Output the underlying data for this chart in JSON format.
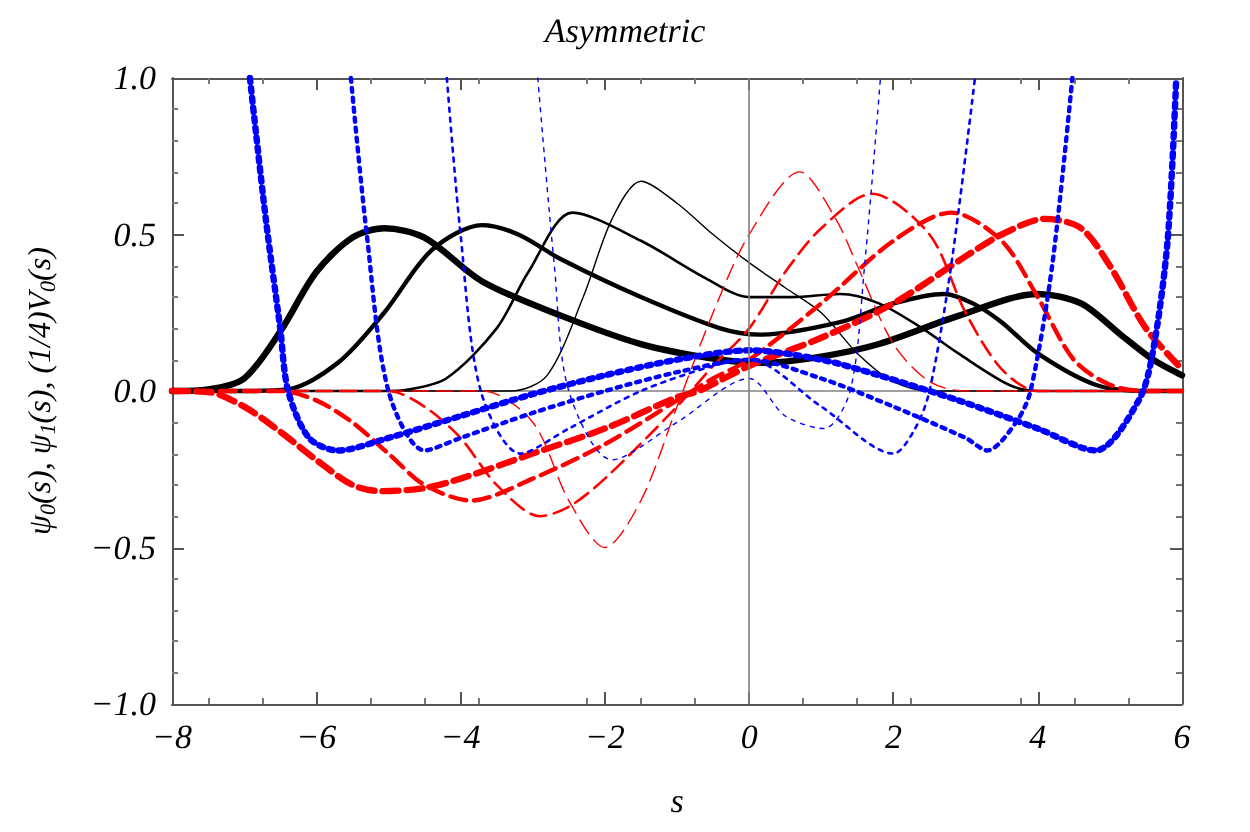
{
  "chart_data": {
    "type": "line",
    "title": "Asymmetric",
    "xlabel": "s",
    "ylabel": "ψ$_{0}$(s), ψ$_{1}$(s), (1/4)V$_{0}$(s)",
    "xlim": [
      -8,
      6
    ],
    "ylim": [
      -1,
      1
    ],
    "xticks": [
      {
        "value": -8,
        "label": "−8"
      },
      {
        "value": -6,
        "label": "−6"
      },
      {
        "value": -4,
        "label": "−4"
      },
      {
        "value": -2,
        "label": "−2"
      },
      {
        "value": 0,
        "label": "0"
      },
      {
        "value": 2,
        "label": "2"
      },
      {
        "value": 4,
        "label": "4"
      },
      {
        "value": 6,
        "label": "6"
      }
    ],
    "yticks": [
      {
        "value": -1,
        "label": "−1.0"
      },
      {
        "value": -0.5,
        "label": "−0.5"
      },
      {
        "value": 0,
        "label": "0.0"
      },
      {
        "value": 0.5,
        "label": "0.5"
      },
      {
        "value": 1,
        "label": "1.0"
      }
    ],
    "marker": "none",
    "ref_lines": [
      {
        "axis": "x",
        "value": 0,
        "color": "#808080"
      }
    ],
    "series": [
      {
        "color": "#000000",
        "line_style": "solid",
        "x": [
          -8,
          -7.5,
          -7,
          -6.5,
          -6,
          -5.5,
          -5.06,
          -4.5,
          -3.7,
          -2.6,
          -1.5,
          -0.4,
          0.2,
          1,
          1.8,
          2.9,
          4,
          4.6,
          5.15,
          5.6,
          6
        ],
        "values": [
          0,
          0.005,
          0.04,
          0.19,
          0.38,
          0.49,
          0.52,
          0.49,
          0.35,
          0.24,
          0.15,
          0.1,
          0.09,
          0.11,
          0.15,
          0.24,
          0.31,
          0.28,
          0.18,
          0.1,
          0.05
        ]
      },
      {
        "color": "#000000",
        "line_style": "solid",
        "x": [
          -8,
          -7,
          -6.4,
          -5.7,
          -5.06,
          -4.4,
          -3.7,
          -3.2,
          -2.6,
          -1.5,
          -0.4,
          0.15,
          1.26,
          2,
          2.7,
          3.1,
          3.5,
          4,
          4.8,
          5.5,
          6
        ],
        "values": [
          0,
          0,
          0.005,
          0.09,
          0.25,
          0.45,
          0.53,
          0.5,
          0.42,
          0.3,
          0.2,
          0.18,
          0.22,
          0.28,
          0.31,
          0.28,
          0.22,
          0.12,
          0.02,
          0,
          0
        ]
      },
      {
        "color": "#000000",
        "line_style": "solid",
        "x": [
          -8,
          -5,
          -4.8,
          -4.2,
          -3.5,
          -3.06,
          -2.45,
          -1.5,
          -0.6,
          0,
          0.6,
          1.26,
          1.8,
          2.4,
          2.9,
          3.6,
          4,
          6
        ],
        "values": [
          0,
          0,
          0.002,
          0.04,
          0.2,
          0.38,
          0.57,
          0.48,
          0.36,
          0.3,
          0.3,
          0.31,
          0.28,
          0.2,
          0.12,
          0.02,
          0,
          0
        ]
      },
      {
        "color": "#000000",
        "line_style": "solid",
        "x": [
          -8,
          -3.3,
          -2.8,
          -2.3,
          -1.9,
          -1.5,
          -1,
          -0.5,
          0,
          0.5,
          1,
          1.5,
          2,
          2.5,
          6
        ],
        "values": [
          0,
          0,
          0.05,
          0.3,
          0.55,
          0.67,
          0.6,
          0.5,
          0.41,
          0.33,
          0.25,
          0.12,
          0.03,
          0,
          0
        ]
      },
      {
        "color": "#ff0000",
        "line_style": "dashed",
        "x": [
          -8,
          -7.5,
          -7,
          -6.5,
          -6,
          -5.5,
          -5.1,
          -4.5,
          -4,
          -3,
          -2,
          -1,
          -0.7,
          0,
          1,
          2,
          3,
          3.5,
          4.1,
          4.6,
          5,
          5.5,
          6
        ],
        "values": [
          0,
          -0.003,
          -0.05,
          -0.13,
          -0.22,
          -0.3,
          -0.32,
          -0.31,
          -0.28,
          -0.2,
          -0.12,
          -0.02,
          0,
          0.08,
          0.17,
          0.28,
          0.43,
          0.5,
          0.55,
          0.52,
          0.4,
          0.2,
          0.07
        ]
      },
      {
        "color": "#ff0000",
        "line_style": "dashed",
        "x": [
          -8,
          -6.5,
          -6,
          -5.5,
          -5,
          -4.5,
          -3.85,
          -3,
          -2,
          -1,
          -0.5,
          0,
          1,
          2,
          2.8,
          3.5,
          4,
          4.5,
          5,
          5.5,
          6
        ],
        "values": [
          0,
          0,
          -0.03,
          -0.1,
          -0.2,
          -0.3,
          -0.35,
          -0.28,
          -0.17,
          -0.03,
          0.04,
          0.1,
          0.28,
          0.48,
          0.57,
          0.48,
          0.3,
          0.1,
          0.02,
          0,
          0
        ]
      },
      {
        "color": "#ff0000",
        "line_style": "dashed",
        "x": [
          -8,
          -5,
          -4.5,
          -4,
          -3.5,
          -2.9,
          -2.5,
          -2,
          -1,
          -0.5,
          0,
          0.5,
          1,
          1.7,
          2.5,
          3,
          3.5,
          4,
          6
        ],
        "values": [
          0,
          0,
          -0.05,
          -0.15,
          -0.3,
          -0.4,
          -0.37,
          -0.28,
          -0.05,
          0.08,
          0.2,
          0.38,
          0.52,
          0.63,
          0.5,
          0.25,
          0.07,
          0,
          0
        ]
      },
      {
        "color": "#ff0000",
        "line_style": "dashed",
        "x": [
          -8,
          -3.7,
          -3,
          -2.5,
          -2,
          -1.5,
          -1,
          -0.5,
          0,
          0.7,
          1.2,
          1.5,
          2,
          2.5,
          3,
          6
        ],
        "values": [
          0,
          0,
          -0.1,
          -0.35,
          -0.5,
          -0.35,
          -0.05,
          0.25,
          0.5,
          0.7,
          0.55,
          0.4,
          0.15,
          0.03,
          0,
          0
        ]
      },
      {
        "color": "#0000ff",
        "line_style": "dotted",
        "x": [
          -6.92,
          -6.7,
          -6.5,
          -6.39,
          -6.1,
          -5.7,
          -5,
          -4,
          -3,
          -2,
          -1,
          0,
          1,
          1.8,
          2.9,
          4,
          4.8,
          5.4,
          5.6,
          5.8,
          5.92
        ],
        "values": [
          1,
          0.55,
          0.2,
          0,
          -0.15,
          -0.19,
          -0.15,
          -0.08,
          -0.01,
          0.05,
          0.1,
          0.13,
          0.1,
          0.05,
          -0.03,
          -0.12,
          -0.19,
          -0.03,
          0.13,
          0.48,
          1
        ]
      },
      {
        "color": "#0000ff",
        "line_style": "dotted",
        "x": [
          -5.52,
          -5.3,
          -5,
          -4.5,
          -4,
          -3,
          -2,
          -1,
          0,
          1,
          2,
          3,
          3.3,
          3.7,
          3.9,
          4.2,
          4.48
        ],
        "values": [
          1,
          0.5,
          0,
          -0.19,
          -0.15,
          -0.07,
          0,
          0.06,
          0.1,
          0.04,
          -0.05,
          -0.15,
          -0.19,
          -0.1,
          0,
          0.4,
          1
        ]
      },
      {
        "color": "#0000ff",
        "line_style": "dotted",
        "x": [
          -4.19,
          -4,
          -3.72,
          -3.17,
          -2.5,
          -1.5,
          -0.5,
          0,
          1,
          2,
          2.3,
          2.5,
          2.8,
          3.13
        ],
        "values": [
          1,
          0.5,
          0,
          -0.2,
          -0.12,
          0,
          0.08,
          0.1,
          -0.05,
          -0.2,
          -0.12,
          0,
          0.4,
          1
        ]
      },
      {
        "color": "#0000ff",
        "line_style": "dotted",
        "x": [
          -2.93,
          -2.7,
          -2.5,
          -1.9,
          -1,
          0,
          0.5,
          1.04,
          1.4,
          1.6,
          1.82
        ],
        "values": [
          1,
          0.4,
          0,
          -0.22,
          -0.1,
          0.04,
          -0.08,
          -0.12,
          0,
          0.4,
          1
        ]
      }
    ]
  }
}
